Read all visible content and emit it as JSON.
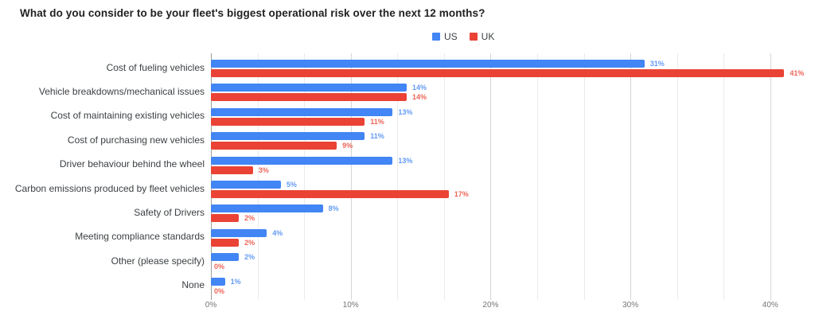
{
  "chart_data": {
    "type": "bar",
    "orientation": "horizontal",
    "title": "What do you consider to be your fleet's biggest operational risk over the next 12 months?",
    "categories": [
      "Cost of fueling vehicles",
      "Vehicle breakdowns/mechanical issues",
      "Cost of maintaining existing vehicles",
      "Cost of purchasing new vehicles",
      "Driver behaviour behind the wheel",
      "Carbon emissions produced by fleet vehicles",
      "Safety of Drivers",
      "Meeting compliance standards",
      "Other (please specify)",
      "None"
    ],
    "series": [
      {
        "name": "US",
        "color": "#4285F4",
        "values": [
          31,
          14,
          13,
          11,
          13,
          5,
          8,
          4,
          2,
          1
        ]
      },
      {
        "name": "UK",
        "color": "#EA4335",
        "values": [
          41,
          14,
          11,
          9,
          3,
          17,
          2,
          2,
          0,
          0
        ]
      }
    ],
    "value_suffix": "%",
    "value_labels_visible": true,
    "x_ticks": [
      {
        "value": 0,
        "label": "0%"
      },
      {
        "value": 10,
        "label": "10%"
      },
      {
        "value": 20,
        "label": "20%"
      },
      {
        "value": 30,
        "label": "30%"
      },
      {
        "value": 40,
        "label": "40%"
      }
    ],
    "axis": {
      "min": 0,
      "max": 42.4,
      "major_step": 10,
      "minor_step": 3.3333
    },
    "grid": true,
    "legend_position": "top"
  },
  "legend": {
    "items": [
      {
        "label": "US",
        "color": "#4285F4"
      },
      {
        "label": "UK",
        "color": "#EA4335"
      }
    ]
  },
  "colors": {
    "title_text": "#212121",
    "category_text": "#3c4043",
    "axis_tick_text": "#757575",
    "axis_line": "#9e9e9e",
    "major_gridline": "#d6d6d6",
    "minor_gridline": "#ebebeb"
  }
}
